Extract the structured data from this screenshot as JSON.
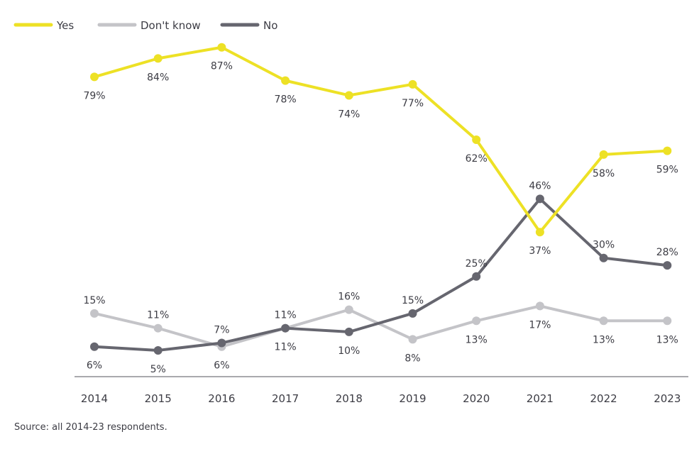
{
  "chart_data": {
    "type": "line",
    "title": "",
    "xlabel": "",
    "ylabel": "",
    "x": [
      "2014",
      "2015",
      "2016",
      "2017",
      "2018",
      "2019",
      "2020",
      "2021",
      "2022",
      "2023"
    ],
    "ylim": [
      0,
      100
    ],
    "grid": false,
    "legend_position": "top-left",
    "value_suffix": "%",
    "series": [
      {
        "name": "Yes",
        "color": "#ede125",
        "values": [
          79,
          84,
          87,
          78,
          74,
          77,
          62,
          37,
          58,
          59
        ],
        "label_positions": [
          "below",
          "below",
          "below",
          "below",
          "below",
          "below",
          "below",
          "below",
          "below",
          "below"
        ]
      },
      {
        "name": "Don't know",
        "color": "#c4c4c8",
        "values": [
          15,
          11,
          6,
          11,
          16,
          8,
          13,
          17,
          13,
          13
        ],
        "label_positions": [
          "above",
          "above",
          "below",
          "above",
          "above",
          "below",
          "below",
          "below",
          "below",
          "below"
        ]
      },
      {
        "name": "No",
        "color": "#66666f",
        "values": [
          6,
          5,
          7,
          11,
          10,
          15,
          25,
          46,
          30,
          28
        ],
        "label_positions": [
          "below",
          "below",
          "above",
          "below",
          "below",
          "above",
          "above",
          "above",
          "above",
          "above"
        ]
      }
    ]
  },
  "source_note": "Source: all 2014-23 respondents."
}
